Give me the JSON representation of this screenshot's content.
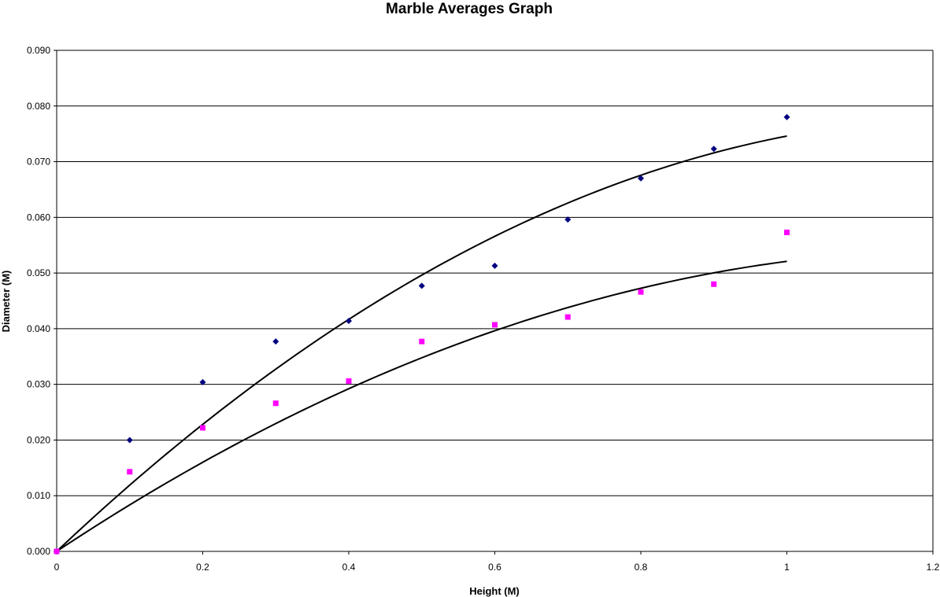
{
  "chart_data": {
    "type": "scatter",
    "title": "Marble Averages Graph",
    "xlabel": "Height (M)",
    "ylabel": "Diameter (M)",
    "xlim": [
      0,
      1.2
    ],
    "ylim": [
      0,
      0.09
    ],
    "x_ticks": [
      "0",
      "0.2",
      "0.4",
      "0.6",
      "0.8",
      "1",
      "1.2"
    ],
    "y_ticks": [
      "0.000",
      "0.010",
      "0.020",
      "0.030",
      "0.040",
      "0.050",
      "0.060",
      "0.070",
      "0.080",
      "0.090"
    ],
    "grid": "horizontal",
    "legend": "none",
    "series": [
      {
        "marker": "diamond",
        "color": "#000080",
        "x": [
          0,
          0.1,
          0.2,
          0.3,
          0.4,
          0.5,
          0.6,
          0.7,
          0.8,
          0.9,
          1.0
        ],
        "y": [
          0.0,
          0.02,
          0.0304,
          0.0377,
          0.0414,
          0.0477,
          0.0513,
          0.0596,
          0.067,
          0.0723,
          0.078
        ],
        "trendline": {
          "type": "polynomial",
          "x": [
            0,
            1.0
          ],
          "coefficients": [
            0,
            0.1239,
            -0.0493
          ]
        }
      },
      {
        "marker": "square",
        "color": "#ff00ff",
        "x": [
          0,
          0.1,
          0.2,
          0.3,
          0.4,
          0.5,
          0.6,
          0.7,
          0.8,
          0.9,
          1.0
        ],
        "y": [
          0.0,
          0.0143,
          0.0222,
          0.0266,
          0.0306,
          0.0377,
          0.0407,
          0.0421,
          0.0466,
          0.048,
          0.0573
        ],
        "trendline": {
          "type": "polynomial",
          "x": [
            0,
            1.0
          ],
          "coefficients": [
            0,
            0.087,
            -0.0349
          ]
        }
      }
    ]
  }
}
